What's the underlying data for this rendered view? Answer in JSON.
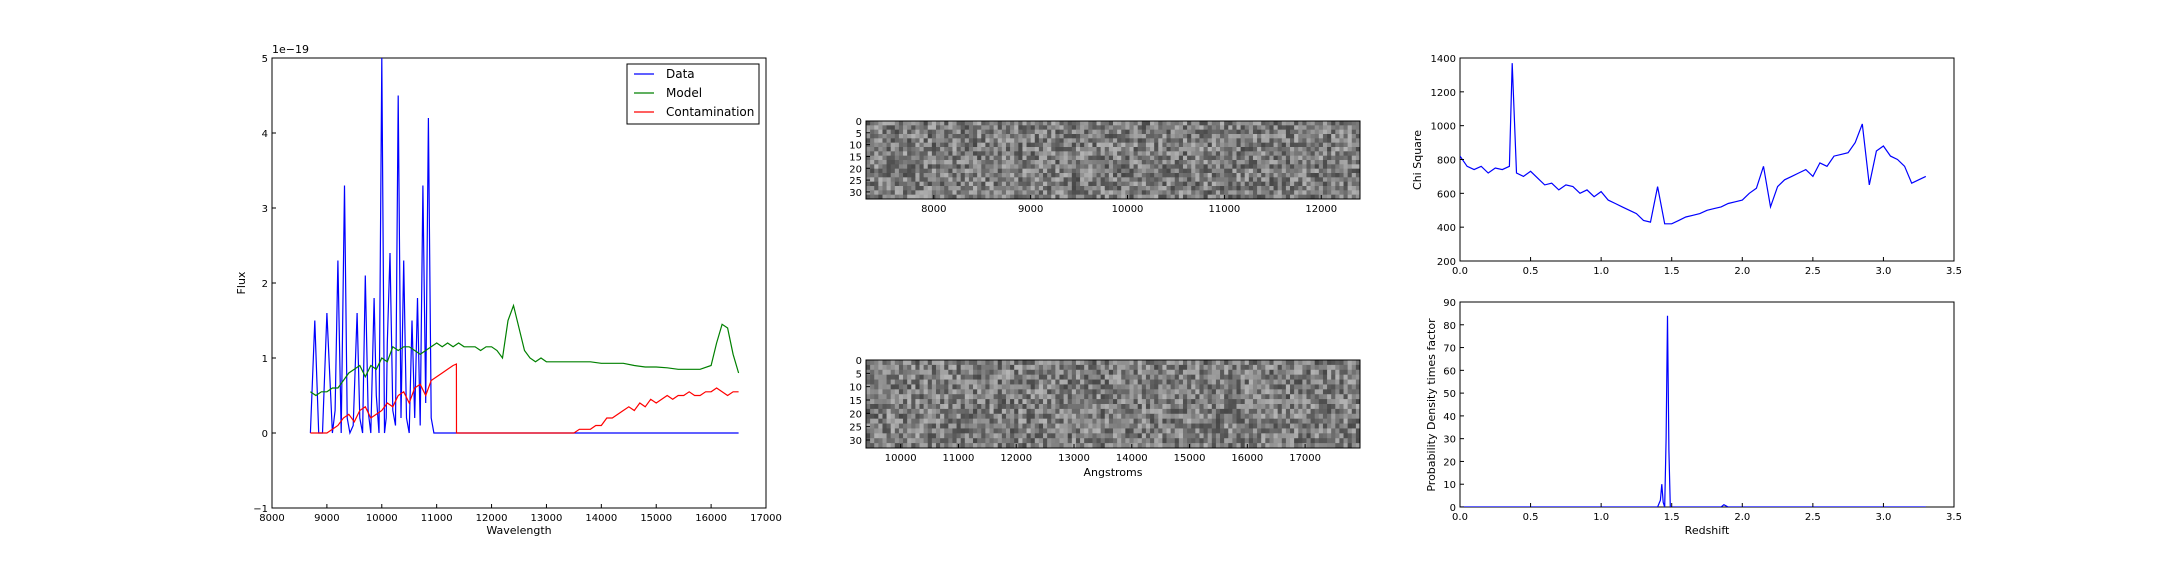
{
  "chart_data": [
    {
      "type": "line",
      "xlabel": "Wavelength",
      "ylabel": "Flux",
      "offset_text": "1e−19",
      "xlim": [
        8000,
        17000
      ],
      "ylim": [
        -1,
        5
      ],
      "xticks": [
        "8000",
        "9000",
        "10000",
        "11000",
        "12000",
        "13000",
        "14000",
        "15000",
        "16000",
        "17000"
      ],
      "yticks": [
        "−1",
        "0",
        "1",
        "2",
        "3",
        "4",
        "5"
      ],
      "legend_position": "top-right",
      "series": [
        {
          "name": "Data",
          "color": "#0000ff",
          "x": [
            8700,
            8780,
            8850,
            8920,
            9000,
            9100,
            9150,
            9200,
            9260,
            9320,
            9370,
            9420,
            9480,
            9550,
            9600,
            9650,
            9700,
            9750,
            9800,
            9860,
            9900,
            9950,
            10000,
            10050,
            10080,
            10100,
            10150,
            10200,
            10250,
            10300,
            10350,
            10400,
            10450,
            10500,
            10550,
            10600,
            10650,
            10700,
            10750,
            10800,
            10850,
            10900,
            10950,
            11000,
            11050,
            11100,
            11150,
            11200,
            11250,
            11300,
            11350,
            11400,
            11500,
            11600,
            11700,
            11800,
            11850,
            11900,
            11950,
            12000,
            12050,
            12100,
            12150,
            12200,
            12250,
            12300,
            12350,
            12400,
            12450,
            12500,
            12550,
            12600,
            12650,
            12700,
            12750,
            12800,
            12850,
            12900,
            12950,
            13000,
            13050,
            13100,
            13150,
            13200,
            13250,
            13300,
            13350,
            13400,
            13450,
            13500,
            13550,
            13600,
            13650,
            13700,
            13750,
            13800,
            13850,
            13900,
            13950,
            14000,
            14050,
            14100,
            14150,
            14200,
            14250,
            14300,
            14350,
            14400,
            14450,
            14500,
            14550,
            14600,
            14650,
            14700,
            14750,
            14800,
            14850,
            14900,
            14950,
            15000,
            15050,
            15100,
            15150,
            15200,
            15250,
            15300,
            15350,
            15400,
            15450,
            15500,
            15550,
            15600,
            15650,
            15700,
            15750,
            15800,
            15850,
            15900,
            15950,
            16000,
            16050,
            16100,
            16150,
            16200,
            16250,
            16300,
            16350,
            16400,
            16450,
            16500
          ],
          "y": [
            0.0,
            1.5,
            0.0,
            0.0,
            1.6,
            0.0,
            0.3,
            2.3,
            0.0,
            3.3,
            0.2,
            0.0,
            0.1,
            1.6,
            0.2,
            0.0,
            2.1,
            0.3,
            0.0,
            1.8,
            0.5,
            0.0,
            5.0,
            0.0,
            0.2,
            1.2,
            2.4,
            0.3,
            0.1,
            4.5,
            0.2,
            2.3,
            0.2,
            0.0,
            1.5,
            0.2,
            1.8,
            0.1,
            3.3,
            0.4,
            4.2,
            0.2,
            0.0,
            0.0,
            0.0,
            0.0,
            0.0,
            0.0,
            0.0,
            0.0,
            0.0,
            0.0,
            0.0,
            0.0,
            0.0,
            0.0,
            0.0,
            0.0,
            0.0,
            0.0,
            0.0,
            0.0,
            0.0,
            0.0,
            0.0,
            0.0,
            0.0,
            0.0,
            0.0,
            0.0,
            0.0,
            0.0,
            0.0,
            0.0,
            0.0,
            0.0,
            0.0,
            0.0,
            0.0,
            0.0,
            0.0,
            0.0,
            0.0,
            0.0,
            0.0,
            0.0,
            0.0,
            0.0,
            0.0,
            0.0,
            0.0,
            0.0,
            0.0,
            0.0,
            0.0,
            0.0,
            0.0,
            0.0,
            0.0,
            0.0,
            0.0,
            0.0,
            0.0,
            0.0,
            0.0,
            0.0,
            0.0,
            0.0,
            0.0,
            0.0,
            0.0,
            0.0,
            0.0,
            0.0,
            0.0,
            0.0,
            0.0,
            0.0,
            0.0,
            0.0,
            0.0,
            0.0,
            0.0,
            0.0,
            0.0,
            0.0,
            0.0,
            0.0,
            0.0,
            0.0,
            0.0,
            0.0,
            0.0,
            0.0,
            0.0,
            0.0,
            0.0,
            0.0,
            0.0,
            0.0,
            0.0,
            0.0,
            0.0,
            0.0,
            0.0,
            0.0,
            0.0,
            0.0,
            0.0,
            0.0
          ]
        },
        {
          "name": "Model",
          "color": "#008000",
          "x": [
            8700,
            8800,
            8900,
            9000,
            9100,
            9200,
            9300,
            9400,
            9500,
            9600,
            9700,
            9800,
            9900,
            10000,
            10100,
            10200,
            10300,
            10400,
            10500,
            10600,
            10700,
            10800,
            10900,
            11000,
            11100,
            11200,
            11300,
            11400,
            11500,
            11600,
            11700,
            11800,
            11900,
            12000,
            12100,
            12200,
            12300,
            12400,
            12500,
            12600,
            12700,
            12800,
            12900,
            13000,
            13200,
            13400,
            13600,
            13800,
            14000,
            14200,
            14400,
            14600,
            14800,
            15000,
            15200,
            15400,
            15600,
            15800,
            16000,
            16100,
            16200,
            16300,
            16400,
            16500
          ],
          "y": [
            0.55,
            0.5,
            0.55,
            0.55,
            0.6,
            0.6,
            0.7,
            0.8,
            0.85,
            0.9,
            0.75,
            0.9,
            0.85,
            1.0,
            0.95,
            1.15,
            1.1,
            1.15,
            1.15,
            1.1,
            1.05,
            1.1,
            1.15,
            1.2,
            1.15,
            1.2,
            1.15,
            1.2,
            1.15,
            1.15,
            1.15,
            1.1,
            1.15,
            1.15,
            1.1,
            1.0,
            1.5,
            1.7,
            1.4,
            1.1,
            1.0,
            0.95,
            1.0,
            0.95,
            0.95,
            0.95,
            0.95,
            0.95,
            0.93,
            0.93,
            0.93,
            0.9,
            0.88,
            0.88,
            0.87,
            0.85,
            0.85,
            0.85,
            0.9,
            1.2,
            1.45,
            1.4,
            1.05,
            0.8
          ]
        },
        {
          "name": "Contamination",
          "color": "#ff0000",
          "x": [
            8700,
            8900,
            9000,
            9100,
            9200,
            9300,
            9400,
            9500,
            9600,
            9700,
            9800,
            9900,
            10000,
            10100,
            10200,
            10300,
            10400,
            10500,
            10600,
            10700,
            10800,
            10900,
            11000,
            11100,
            11200,
            11300,
            11360,
            11361,
            11500,
            12000,
            12500,
            13000,
            13300,
            13400,
            13500,
            13600,
            13700,
            13800,
            13900,
            14000,
            14100,
            14200,
            14300,
            14400,
            14500,
            14600,
            14700,
            14800,
            14900,
            15000,
            15100,
            15200,
            15300,
            15400,
            15500,
            15600,
            15700,
            15800,
            15900,
            16000,
            16100,
            16200,
            16300,
            16400,
            16500
          ],
          "y": [
            0.0,
            0.0,
            0.0,
            0.05,
            0.1,
            0.2,
            0.25,
            0.15,
            0.3,
            0.35,
            0.2,
            0.25,
            0.3,
            0.4,
            0.35,
            0.5,
            0.55,
            0.4,
            0.6,
            0.65,
            0.5,
            0.7,
            0.75,
            0.8,
            0.85,
            0.9,
            0.92,
            0.0,
            0.0,
            0.0,
            0.0,
            0.0,
            0.0,
            0.0,
            0.0,
            0.05,
            0.05,
            0.05,
            0.1,
            0.1,
            0.2,
            0.2,
            0.25,
            0.3,
            0.35,
            0.3,
            0.4,
            0.35,
            0.45,
            0.4,
            0.45,
            0.5,
            0.45,
            0.5,
            0.5,
            0.55,
            0.5,
            0.5,
            0.55,
            0.55,
            0.6,
            0.55,
            0.5,
            0.55,
            0.55
          ]
        }
      ]
    },
    {
      "type": "heatmap",
      "xlim": [
        7300,
        12400
      ],
      "ylim": [
        33,
        0
      ],
      "xticks": [
        "8000",
        "9000",
        "10000",
        "11000",
        "12000"
      ],
      "yticks": [
        "0",
        "5",
        "10",
        "15",
        "20",
        "25",
        "30"
      ],
      "xlabel": "",
      "ylabel": "",
      "colormap": "gray"
    },
    {
      "type": "heatmap",
      "xlim": [
        9400,
        17950
      ],
      "ylim": [
        33,
        0
      ],
      "xticks": [
        "10000",
        "11000",
        "12000",
        "13000",
        "14000",
        "15000",
        "16000",
        "17000"
      ],
      "yticks": [
        "0",
        "5",
        "10",
        "15",
        "20",
        "25",
        "30"
      ],
      "xlabel": "Angstroms",
      "ylabel": "",
      "colormap": "gray"
    },
    {
      "type": "line",
      "xlabel": "",
      "ylabel": "Chi Square",
      "xlim": [
        0,
        3.5
      ],
      "ylim": [
        200,
        1400
      ],
      "xticks": [
        "0.0",
        "0.5",
        "1.0",
        "1.5",
        "2.0",
        "2.5",
        "3.0",
        "3.5"
      ],
      "yticks": [
        "200",
        "400",
        "600",
        "800",
        "1000",
        "1200",
        "1400"
      ],
      "series": [
        {
          "color": "#0000ff",
          "x": [
            0.0,
            0.05,
            0.1,
            0.15,
            0.2,
            0.25,
            0.3,
            0.35,
            0.37,
            0.4,
            0.45,
            0.5,
            0.55,
            0.6,
            0.65,
            0.7,
            0.75,
            0.8,
            0.85,
            0.9,
            0.95,
            1.0,
            1.05,
            1.1,
            1.15,
            1.2,
            1.25,
            1.3,
            1.35,
            1.4,
            1.45,
            1.5,
            1.55,
            1.6,
            1.65,
            1.7,
            1.75,
            1.8,
            1.85,
            1.9,
            1.95,
            2.0,
            2.05,
            2.1,
            2.15,
            2.2,
            2.25,
            2.3,
            2.35,
            2.4,
            2.45,
            2.5,
            2.55,
            2.6,
            2.65,
            2.7,
            2.75,
            2.8,
            2.85,
            2.9,
            2.95,
            3.0,
            3.05,
            3.1,
            3.15,
            3.2,
            3.25,
            3.3
          ],
          "y": [
            820,
            760,
            740,
            760,
            720,
            750,
            740,
            760,
            1370,
            720,
            700,
            730,
            690,
            650,
            660,
            620,
            650,
            640,
            600,
            620,
            580,
            610,
            560,
            540,
            520,
            500,
            480,
            440,
            430,
            640,
            420,
            420,
            440,
            460,
            470,
            480,
            500,
            510,
            520,
            540,
            550,
            560,
            600,
            630,
            760,
            520,
            640,
            680,
            700,
            720,
            740,
            700,
            780,
            760,
            820,
            830,
            840,
            900,
            1010,
            650,
            850,
            880,
            820,
            800,
            760,
            660,
            680,
            700
          ]
        }
      ]
    },
    {
      "type": "line",
      "xlabel": "Redshift",
      "ylabel": "Probability Density times factor",
      "xlim": [
        0,
        3.5
      ],
      "ylim": [
        0,
        90
      ],
      "xticks": [
        "0.0",
        "0.5",
        "1.0",
        "1.5",
        "2.0",
        "2.5",
        "3.0",
        "3.5"
      ],
      "yticks": [
        "0",
        "10",
        "20",
        "30",
        "40",
        "50",
        "60",
        "70",
        "80",
        "90"
      ],
      "series": [
        {
          "color": "#0000ff",
          "x": [
            0.0,
            1.2,
            1.4,
            1.42,
            1.43,
            1.44,
            1.45,
            1.46,
            1.47,
            1.48,
            1.49,
            1.5,
            1.52,
            1.6,
            1.85,
            1.87,
            1.9,
            2.0,
            2.5,
            3.0,
            3.3
          ],
          "y": [
            0,
            0,
            0,
            3,
            10,
            2,
            0,
            30,
            84,
            25,
            0,
            0,
            0,
            0,
            0,
            1,
            0,
            0,
            0,
            0,
            0
          ]
        }
      ]
    }
  ]
}
